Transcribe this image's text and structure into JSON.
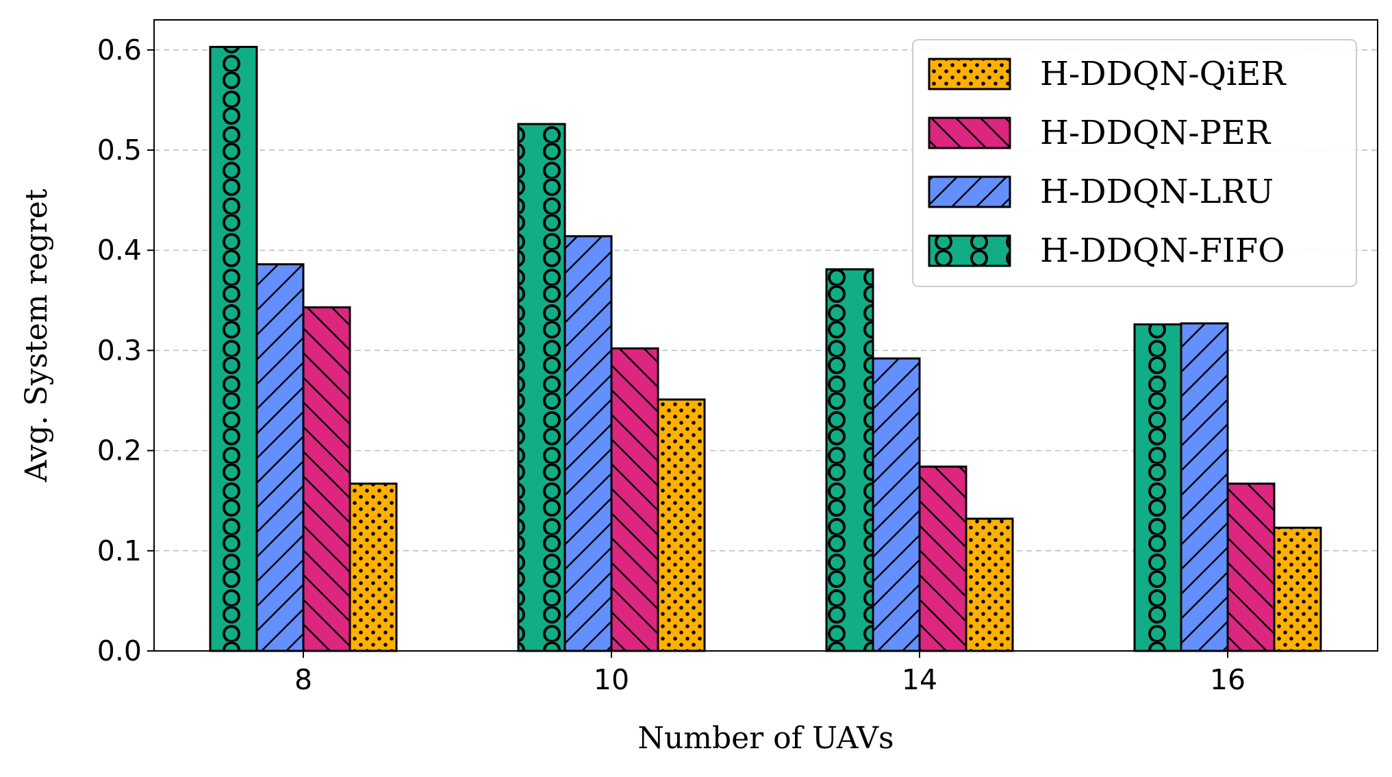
{
  "chart_data": {
    "type": "bar",
    "title": "",
    "xlabel": "Number of UAVs",
    "ylabel": "Avg. System regret",
    "categories": [
      "8",
      "10",
      "14",
      "16"
    ],
    "ylim": [
      0,
      0.63
    ],
    "yticks": [
      0.0,
      0.1,
      0.2,
      0.3,
      0.4,
      0.5,
      0.6
    ],
    "ytick_labels": [
      "0.0",
      "0.1",
      "0.2",
      "0.3",
      "0.4",
      "0.5",
      "0.6"
    ],
    "grid": "horizontal dashed",
    "legend_position": "top-right",
    "series": [
      {
        "name": "H-DDQN-FIFO",
        "values": [
          0.603,
          0.526,
          0.381,
          0.326
        ],
        "color": "#10ad86",
        "hatch": "circles"
      },
      {
        "name": "H-DDQN-LRU",
        "values": [
          0.386,
          0.414,
          0.292,
          0.327
        ],
        "color": "#648fff",
        "hatch": "forward-diagonal"
      },
      {
        "name": "H-DDQN-PER",
        "values": [
          0.343,
          0.302,
          0.184,
          0.167
        ],
        "color": "#dc267f",
        "hatch": "back-diagonal"
      },
      {
        "name": "H-DDQN-QiER",
        "values": [
          0.167,
          0.251,
          0.132,
          0.123
        ],
        "color": "#ffb000",
        "hatch": "dots"
      }
    ],
    "legend_order": [
      "H-DDQN-QiER",
      "H-DDQN-PER",
      "H-DDQN-LRU",
      "H-DDQN-FIFO"
    ]
  }
}
